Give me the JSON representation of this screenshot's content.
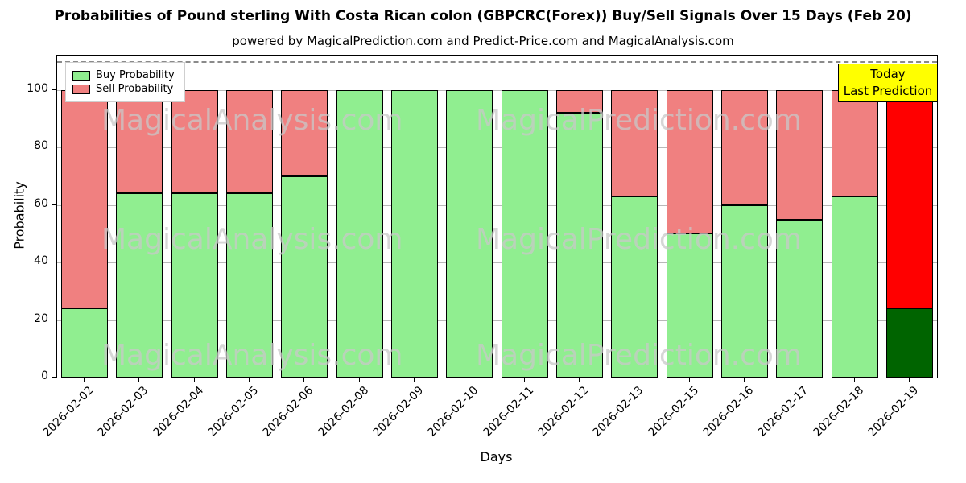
{
  "title": "Probabilities of Pound sterling With Costa Rican colon (GBPCRC(Forex)) Buy/Sell Signals Over 15 Days (Feb 20)",
  "subtitle": "powered by MagicalPrediction.com and Predict-Price.com and MagicalAnalysis.com",
  "annotation": {
    "line1": "Today",
    "line2": "Last Prediction"
  },
  "axes": {
    "xlabel": "Days",
    "ylabel": "Probability",
    "yticks": [
      0,
      20,
      40,
      60,
      80,
      100
    ],
    "ylim": [
      0,
      112
    ],
    "dashed_line_y": 110,
    "grid": true
  },
  "colors": {
    "buy": "#90ee90",
    "sell": "#f08080",
    "today_buy": "#006400",
    "today_sell": "#ff0000",
    "bar_edge": "#000000",
    "grid": "#b8b8b8",
    "annotation_bg": "#ffff00",
    "watermark": "#c9c9c9"
  },
  "watermark_texts": [
    "MagicalAnalysis.com",
    "MagicalPrediction.com"
  ],
  "chart_data": {
    "type": "bar",
    "stacked": true,
    "title": "Probabilities of Pound sterling With Costa Rican colon (GBPCRC(Forex)) Buy/Sell Signals Over 15 Days (Feb 20)",
    "xlabel": "Days",
    "ylabel": "Probability",
    "ylim": [
      0,
      112
    ],
    "legend_position": "upper left",
    "categories": [
      "2026-02-02",
      "2026-02-03",
      "2026-02-04",
      "2026-02-05",
      "2026-02-06",
      "2026-02-08",
      "2026-02-09",
      "2026-02-10",
      "2026-02-11",
      "2026-02-12",
      "2026-02-13",
      "2026-02-15",
      "2026-02-16",
      "2026-02-17",
      "2026-02-18",
      "2026-02-19"
    ],
    "series": [
      {
        "name": "Buy Probability",
        "color": "#90ee90",
        "values": [
          24,
          64,
          64,
          64,
          70,
          100,
          100,
          100,
          100,
          92,
          63,
          50,
          60,
          55,
          63,
          24
        ]
      },
      {
        "name": "Sell Probability",
        "color": "#f08080",
        "values": [
          76,
          36,
          36,
          36,
          30,
          0,
          0,
          0,
          0,
          8,
          37,
          50,
          40,
          45,
          37,
          76
        ]
      }
    ],
    "today_index": 15
  }
}
